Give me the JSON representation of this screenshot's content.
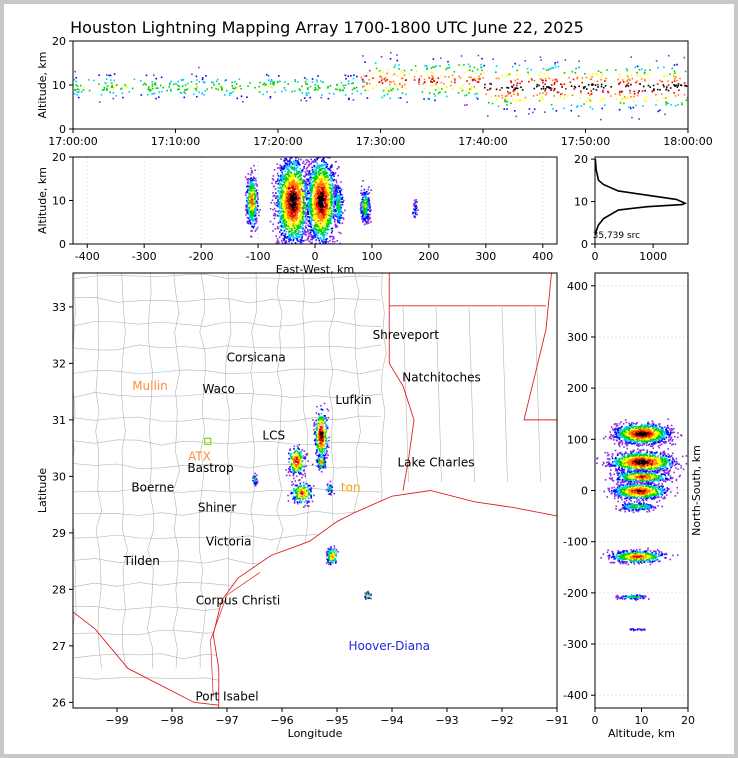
{
  "title": "Houston Lightning Mapping Array 1700-1800 UTC June 22, 2025",
  "colors": {
    "frame": "#c8c8c8",
    "background": "#ffffff",
    "state_lines": "#e02020",
    "county_lines": "#b4b4b4",
    "hist_line": "#000000",
    "city_label": "#000000",
    "radar_label": "#ff8c3c",
    "station_label": "#ffa000",
    "offshore_label": "#1e28dc",
    "density_scale": [
      "#8a2be2",
      "#0000ff",
      "#00c8ff",
      "#00d000",
      "#ffff00",
      "#ff8000",
      "#e00000",
      "#000000"
    ]
  },
  "chart_data": [
    {
      "panel": "time-altitude",
      "type": "scatter",
      "xlabel": "",
      "ylabel": "Altitude, km",
      "xlim": [
        "17:00:00",
        "18:00:00"
      ],
      "ylim": [
        0,
        20
      ],
      "xticks": [
        "17:00:00",
        "17:10:00",
        "17:20:00",
        "17:30:00",
        "17:40:00",
        "17:50:00",
        "18:00:00"
      ],
      "yticks": [
        0,
        10,
        20
      ],
      "density_clusters": [
        {
          "t": "17:00:00",
          "t_end": "17:29:00",
          "alt": 9.5,
          "spread": 1.5,
          "level": 0.45
        },
        {
          "t": "17:28:00",
          "t_end": "17:40:00",
          "alt": 11.0,
          "spread": 2.5,
          "level": 0.75
        },
        {
          "t": "17:40:00",
          "t_end": "18:00:00",
          "alt": 9.5,
          "spread": 2.8,
          "level": 0.9
        }
      ]
    },
    {
      "panel": "eastwest-altitude",
      "type": "scatter",
      "xlabel": "East-West, km",
      "ylabel": "Altitude, km",
      "xlim": [
        -425,
        425
      ],
      "ylim": [
        0,
        20
      ],
      "xticks": [
        -400,
        -300,
        -200,
        -100,
        0,
        100,
        200,
        300,
        400
      ],
      "yticks": [
        0,
        10,
        20
      ],
      "density_clusters": [
        {
          "x": -112,
          "alt": 10,
          "spread_x": 5,
          "spread_z": 3,
          "level": 0.75
        },
        {
          "x": -40,
          "alt": 10,
          "spread_x": 15,
          "spread_z": 5,
          "level": 1.0
        },
        {
          "x": 10,
          "alt": 10,
          "spread_x": 13,
          "spread_z": 5,
          "level": 1.0
        },
        {
          "x": 40,
          "alt": 9,
          "spread_x": 4,
          "spread_z": 2.5,
          "level": 0.45
        },
        {
          "x": 87,
          "alt": 9,
          "spread_x": 4,
          "spread_z": 2,
          "level": 0.55
        },
        {
          "x": 175,
          "alt": 8,
          "spread_x": 2,
          "spread_z": 1,
          "level": 0.2
        }
      ]
    },
    {
      "panel": "altitude-histogram",
      "type": "line",
      "xlabel": "",
      "ylabel": "",
      "xlim": [
        0,
        1600
      ],
      "ylim": [
        0,
        20.5
      ],
      "xticks": [
        0,
        1000
      ],
      "yticks": [
        0,
        10,
        20
      ],
      "annotation": "35,739 src",
      "points": [
        [
          0,
          2.2
        ],
        [
          20,
          3
        ],
        [
          60,
          4.5
        ],
        [
          150,
          6
        ],
        [
          400,
          8
        ],
        [
          900,
          8.8
        ],
        [
          1500,
          9.3
        ],
        [
          1550,
          9.6
        ],
        [
          1400,
          10.5
        ],
        [
          900,
          11.5
        ],
        [
          400,
          12.5
        ],
        [
          150,
          14
        ],
        [
          60,
          15
        ],
        [
          20,
          17.5
        ],
        [
          5,
          20
        ]
      ]
    },
    {
      "panel": "plan-view",
      "type": "scatter",
      "xlabel": "Longitude",
      "ylabel": "Latitude",
      "xlim": [
        -99.8,
        -91
      ],
      "ylim": [
        25.9,
        33.6
      ],
      "xticks": [
        -99,
        -98,
        -97,
        -96,
        -95,
        -94,
        -93,
        -92,
        -91
      ],
      "yticks": [
        26,
        27,
        28,
        29,
        30,
        31,
        32,
        33
      ],
      "cities": [
        {
          "name": "Shreveport",
          "lon": -93.75,
          "lat": 32.5
        },
        {
          "name": "Corsicana",
          "lon": -96.47,
          "lat": 32.1
        },
        {
          "name": "Natchitoches",
          "lon": -93.1,
          "lat": 31.75
        },
        {
          "name": "Waco",
          "lon": -97.15,
          "lat": 31.55
        },
        {
          "name": "Lufkin",
          "lon": -94.7,
          "lat": 31.35
        },
        {
          "name": "Lake Charles",
          "lon": -93.2,
          "lat": 30.25
        },
        {
          "name": "Bastrop",
          "lon": -97.3,
          "lat": 30.15
        },
        {
          "name": "Boerne",
          "lon": -98.35,
          "lat": 29.8
        },
        {
          "name": "Shiner",
          "lon": -97.18,
          "lat": 29.45
        },
        {
          "name": "Victoria",
          "lon": -96.97,
          "lat": 28.85
        },
        {
          "name": "Tilden",
          "lon": -98.55,
          "lat": 28.5
        },
        {
          "name": "Corpus Christi",
          "lon": -96.8,
          "lat": 27.8
        },
        {
          "name": "Port Isabel",
          "lon": -97.0,
          "lat": 26.1
        }
      ],
      "radar_labels": [
        {
          "name": "Mullin",
          "lon": -98.4,
          "lat": 31.6
        },
        {
          "name": "ATX",
          "lon": -97.5,
          "lat": 30.35
        }
      ],
      "partial_labels": [
        {
          "name": "ton",
          "lon": -94.75,
          "lat": 29.8
        },
        {
          "name": "LCS",
          "lon": -96.15,
          "lat": 30.72
        }
      ],
      "offshore_labels": [
        {
          "name": "Hoover-Diana",
          "lon": -94.05,
          "lat": 27.0
        }
      ],
      "storm_cells": [
        {
          "lon": -95.3,
          "lat": 30.75,
          "spread_lon": 0.06,
          "spread_lat": 0.22,
          "level": 1.0
        },
        {
          "lon": -95.75,
          "lat": 30.28,
          "spread_lon": 0.08,
          "spread_lat": 0.12,
          "level": 0.9
        },
        {
          "lon": -95.3,
          "lat": 30.27,
          "spread_lon": 0.04,
          "spread_lat": 0.07,
          "level": 0.7
        },
        {
          "lon": -95.65,
          "lat": 29.72,
          "spread_lon": 0.1,
          "spread_lat": 0.1,
          "level": 0.75
        },
        {
          "lon": -95.15,
          "lat": 29.78,
          "spread_lon": 0.03,
          "spread_lat": 0.05,
          "level": 0.4
        },
        {
          "lon": -95.1,
          "lat": 28.6,
          "spread_lon": 0.05,
          "spread_lat": 0.08,
          "level": 0.7
        },
        {
          "lon": -94.45,
          "lat": 27.9,
          "spread_lon": 0.03,
          "spread_lat": 0.03,
          "level": 0.6
        },
        {
          "lon": -96.5,
          "lat": 29.95,
          "spread_lon": 0.02,
          "spread_lat": 0.05,
          "level": 0.4
        }
      ]
    },
    {
      "panel": "altitude-northsouth",
      "type": "scatter",
      "xlabel": "Altitude, km",
      "ylabel": "North-South, km",
      "xlim": [
        0,
        20
      ],
      "ylim": [
        -425,
        425
      ],
      "xticks": [
        0,
        10,
        20
      ],
      "yticks": [
        -400,
        -300,
        -200,
        -100,
        0,
        100,
        200,
        300,
        400
      ],
      "density_clusters": [
        {
          "alt": 10,
          "y": 112,
          "spread_z": 3,
          "spread_y": 10,
          "level": 1.0
        },
        {
          "alt": 10,
          "y": 57,
          "spread_z": 3.5,
          "spread_y": 10,
          "level": 1.0
        },
        {
          "alt": 10,
          "y": 28,
          "spread_z": 3,
          "spread_y": 6,
          "level": 0.8
        },
        {
          "alt": 9.5,
          "y": 0,
          "spread_z": 3,
          "spread_y": 8,
          "level": 0.9
        },
        {
          "alt": 9,
          "y": -30,
          "spread_z": 2,
          "spread_y": 4,
          "level": 0.5
        },
        {
          "alt": 9,
          "y": -128,
          "spread_z": 3,
          "spread_y": 6,
          "level": 0.8
        },
        {
          "alt": 8,
          "y": -207,
          "spread_z": 1.5,
          "spread_y": 2,
          "level": 0.5
        },
        {
          "alt": 9,
          "y": -270,
          "spread_z": 1,
          "spread_y": 1,
          "level": 0.25
        }
      ]
    }
  ]
}
